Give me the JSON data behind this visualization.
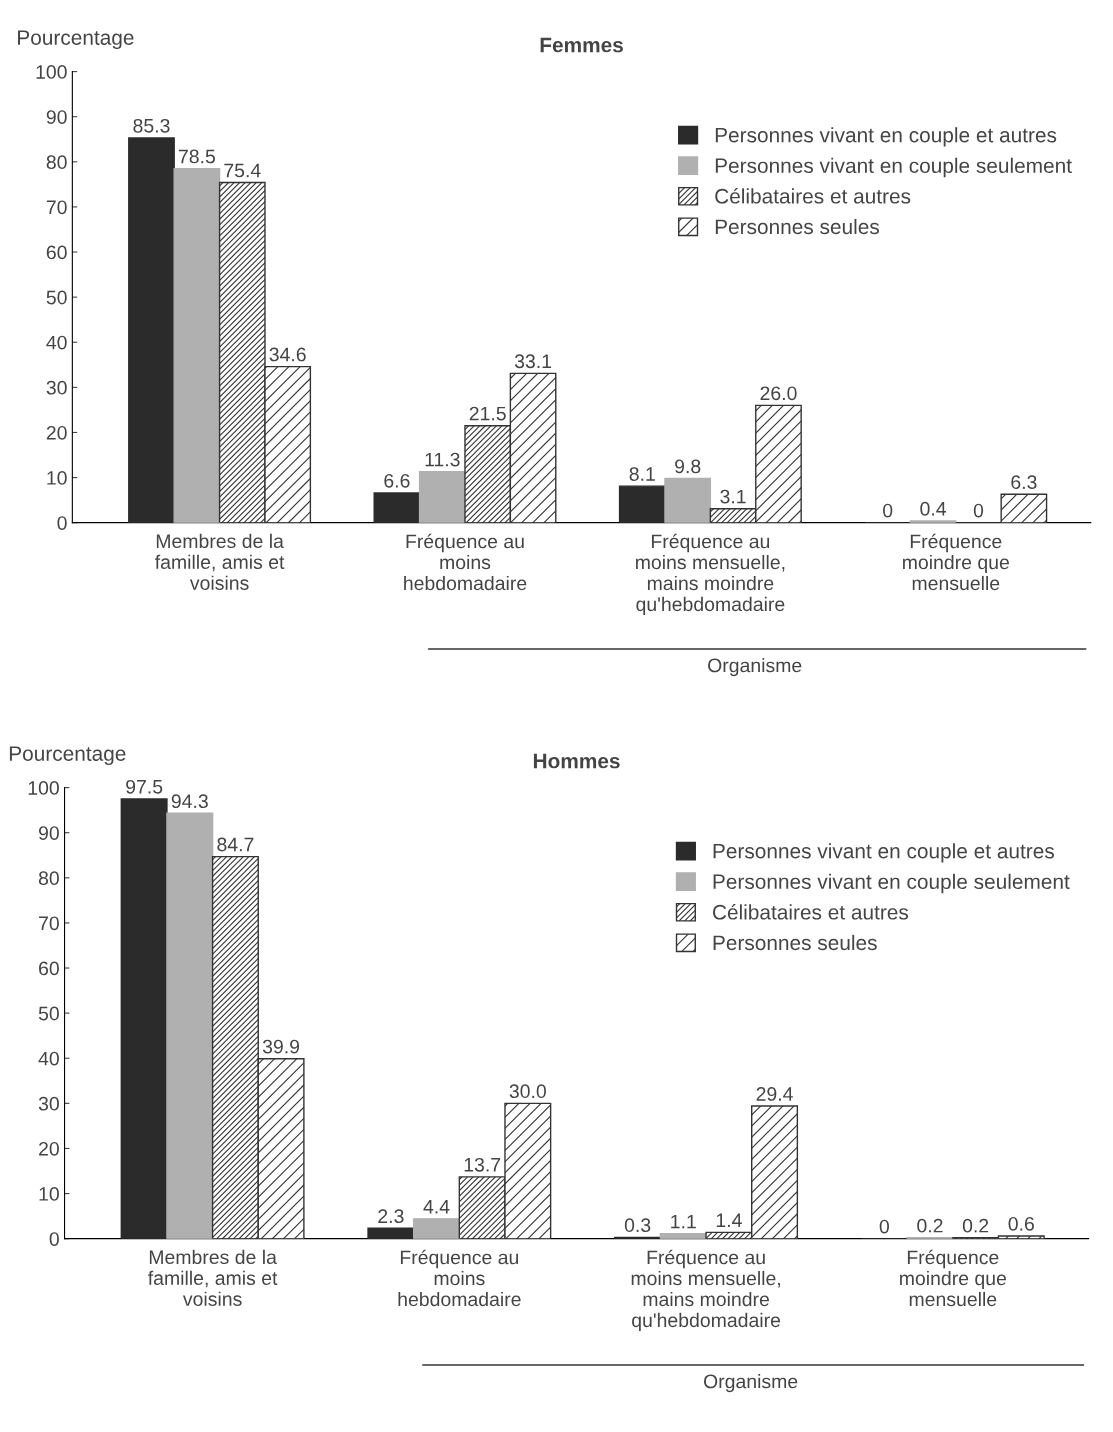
{
  "chart_data": [
    {
      "type": "bar",
      "title": "Femmes",
      "ylabel": "Pourcentage",
      "categories": [
        "Membres de la\nfamille, amis et\nvoisins",
        "Fréquence au\nmoins\nhebdomadaire",
        "Fréquence au\nmoins mensuelle,\nmains moindre\nqu'hebdomadaire",
        "Fréquence\nmoindre que\nmensuelle"
      ],
      "series": [
        {
          "name": "Personnes vivant en couple et autres",
          "color": "#2b2b2b",
          "values": [
            85.3,
            6.6,
            8.1,
            0
          ],
          "value_labels": [
            "85.3",
            "6.6",
            "8.1",
            "0"
          ]
        },
        {
          "name": "Personnes vivant en couple seulement",
          "color": "#b0b0b0",
          "values": [
            78.5,
            11.3,
            9.8,
            0.4
          ],
          "value_labels": [
            "78.5",
            "11.3",
            "9.8",
            "0.4"
          ]
        },
        {
          "name": "Célibataires et autres",
          "color": "#333333",
          "values": [
            75.4,
            21.5,
            3.1,
            0
          ],
          "value_labels": [
            "75.4",
            "21.5",
            "3.1",
            "0"
          ]
        },
        {
          "name": "Personnes seules",
          "color": "#333333",
          "values": [
            34.6,
            33.1,
            26.0,
            6.3
          ],
          "value_labels": [
            "34.6",
            "33.1",
            "26.0",
            "6.3"
          ]
        }
      ],
      "ylim": [
        0,
        100
      ],
      "yticks": [
        0,
        10,
        20,
        30,
        40,
        50,
        60,
        70,
        80,
        90,
        100
      ],
      "grid": false,
      "legend": "top right",
      "annotations": [
        "Organisme"
      ]
    },
    {
      "type": "bar",
      "title": "Hommes",
      "ylabel": "Pourcentage",
      "categories": [
        "Membres de la\nfamille, amis et\nvoisins",
        "Fréquence au\nmoins\nhebdomadaire",
        "Fréquence au\nmoins mensuelle,\nmains moindre\nqu'hebdomadaire",
        "Fréquence\nmoindre que\nmensuelle"
      ],
      "series": [
        {
          "name": "Personnes vivant en couple et autres",
          "color": "#2b2b2b",
          "values": [
            97.5,
            2.3,
            0.3,
            0
          ],
          "value_labels": [
            "97.5",
            "2.3",
            "0.3",
            "0"
          ]
        },
        {
          "name": "Personnes vivant en couple seulement",
          "color": "#b0b0b0",
          "values": [
            94.3,
            4.4,
            1.1,
            0.2
          ],
          "value_labels": [
            "94.3",
            "4.4",
            "1.1",
            "0.2"
          ]
        },
        {
          "name": "Célibataires et autres",
          "color": "#333333",
          "values": [
            84.7,
            13.7,
            1.4,
            0.2
          ],
          "value_labels": [
            "84.7",
            "13.7",
            "1.4",
            "0.2"
          ]
        },
        {
          "name": "Personnes seules",
          "color": "#333333",
          "values": [
            39.9,
            30.0,
            29.4,
            0.6
          ],
          "value_labels": [
            "39.9",
            "30.0",
            "29.4",
            "0.6"
          ]
        }
      ],
      "ylim": [
        0,
        100
      ],
      "yticks": [
        0,
        10,
        20,
        30,
        40,
        50,
        60,
        70,
        80,
        90,
        100
      ],
      "grid": false,
      "legend": "top right",
      "annotations": [
        "Organisme"
      ]
    }
  ]
}
